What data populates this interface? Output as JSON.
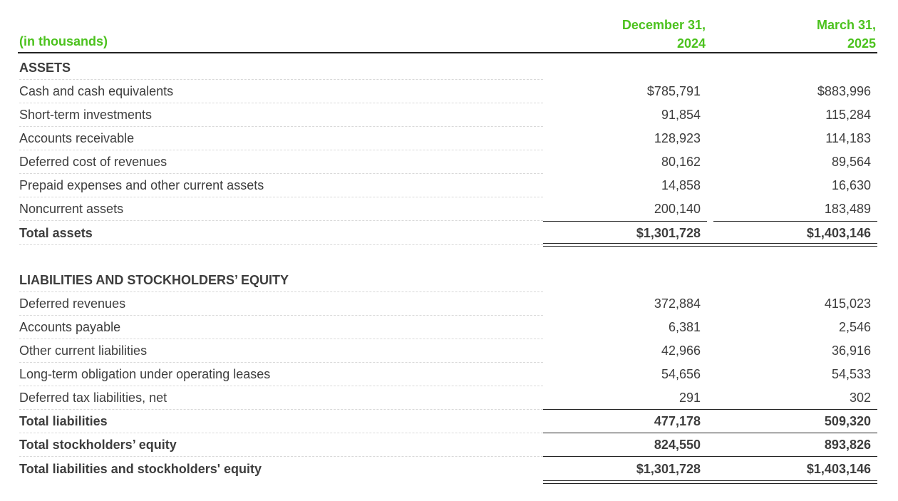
{
  "header": {
    "units": "(in thousands)",
    "col1_line1": "December 31,",
    "col1_line2": "2024",
    "col2_line1": "March 31,",
    "col2_line2": "2025"
  },
  "assets": {
    "heading": "ASSETS",
    "rows": [
      {
        "label": "Cash and cash equivalents",
        "v1": "$785,791",
        "v2": "$883,996"
      },
      {
        "label": "Short-term investments",
        "v1": "91,854",
        "v2": "115,284"
      },
      {
        "label": "Accounts receivable",
        "v1": "128,923",
        "v2": "114,183"
      },
      {
        "label": "Deferred cost of revenues",
        "v1": "80,162",
        "v2": "89,564"
      },
      {
        "label": "Prepaid expenses and other current assets",
        "v1": "14,858",
        "v2": "16,630"
      },
      {
        "label": "Noncurrent assets",
        "v1": "200,140",
        "v2": "183,489"
      }
    ],
    "total": {
      "label": "Total assets",
      "v1": "$1,301,728",
      "v2": "$1,403,146"
    }
  },
  "liabilities": {
    "heading": "LIABILITIES AND STOCKHOLDERS’ EQUITY",
    "rows": [
      {
        "label": "Deferred revenues",
        "v1": "372,884",
        "v2": "415,023"
      },
      {
        "label": "Accounts payable",
        "v1": "6,381",
        "v2": "2,546"
      },
      {
        "label": "Other current liabilities",
        "v1": "42,966",
        "v2": "36,916"
      },
      {
        "label": "Long-term obligation under operating leases",
        "v1": "54,656",
        "v2": "54,533"
      },
      {
        "label": "Deferred tax liabilities, net",
        "v1": "291",
        "v2": "302"
      }
    ],
    "total_liabilities": {
      "label": "Total liabilities",
      "v1": "477,178",
      "v2": "509,320"
    },
    "total_equity": {
      "label": "Total stockholders’ equity",
      "v1": "824,550",
      "v2": "893,826"
    },
    "total_le": {
      "label": "Total liabilities and stockholders' equity",
      "v1": "$1,301,728",
      "v2": "$1,403,146"
    }
  },
  "colors": {
    "header_accent": "#4cc21e",
    "text": "#3d3d3d"
  }
}
